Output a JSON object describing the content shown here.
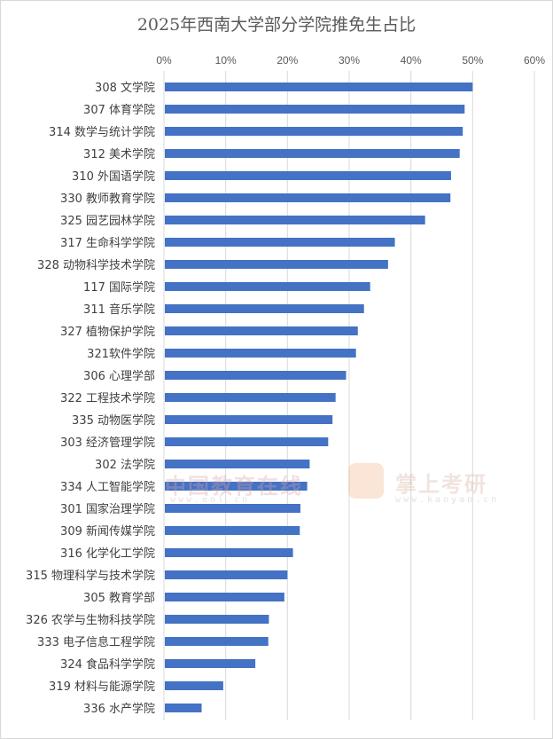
{
  "chart_data": {
    "type": "bar",
    "orientation": "horizontal",
    "title": "2025年西南大学部分学院推免生占比",
    "xlabel": "",
    "ylabel": "",
    "xlim": [
      0,
      60
    ],
    "x_ticks": [
      "0%",
      "10%",
      "20%",
      "30%",
      "40%",
      "50%",
      "60%"
    ],
    "grid": "vertical",
    "legend": "none",
    "bar_color": "#4472c4",
    "categories": [
      "308 文学院",
      "307 体育学院",
      "314 数学与统计学院",
      "312 美术学院",
      "310 外国语学院",
      "330 教师教育学院",
      "325 园艺园林学院",
      "317 生命科学学院",
      "328 动物科学技术学院",
      "117 国际学院",
      "311 音乐学院",
      "327 植物保护学院",
      "321软件学院",
      "306 心理学部",
      "322 工程技术学院",
      "335 动物医学院",
      "303 经济管理学院",
      "302 法学院",
      "334 人工智能学院",
      "301 国家治理学院",
      "309 新闻传媒学院",
      "316 化学化工学院",
      "315 物理科学与技术学院",
      "305 教育学部",
      "326 农学与生物科技学院",
      "333 电子信息工程学院",
      "324 食品科学学院",
      "319 材料与能源学院",
      "336 水产学院"
    ],
    "values": [
      50.0,
      48.7,
      48.4,
      47.9,
      46.5,
      46.4,
      42.3,
      37.4,
      36.3,
      33.4,
      32.4,
      31.4,
      31.1,
      29.5,
      27.8,
      27.3,
      26.6,
      23.6,
      23.2,
      22.1,
      22.0,
      20.9,
      20.0,
      19.5,
      17.0,
      16.9,
      14.8,
      9.6,
      6.1
    ]
  },
  "watermarks": {
    "eol_main": "中国教育在线",
    "eol_url": "www.eol.cn",
    "kaoyan_main": "掌上考研",
    "kaoyan_url": "www.kaoyan.cn"
  }
}
